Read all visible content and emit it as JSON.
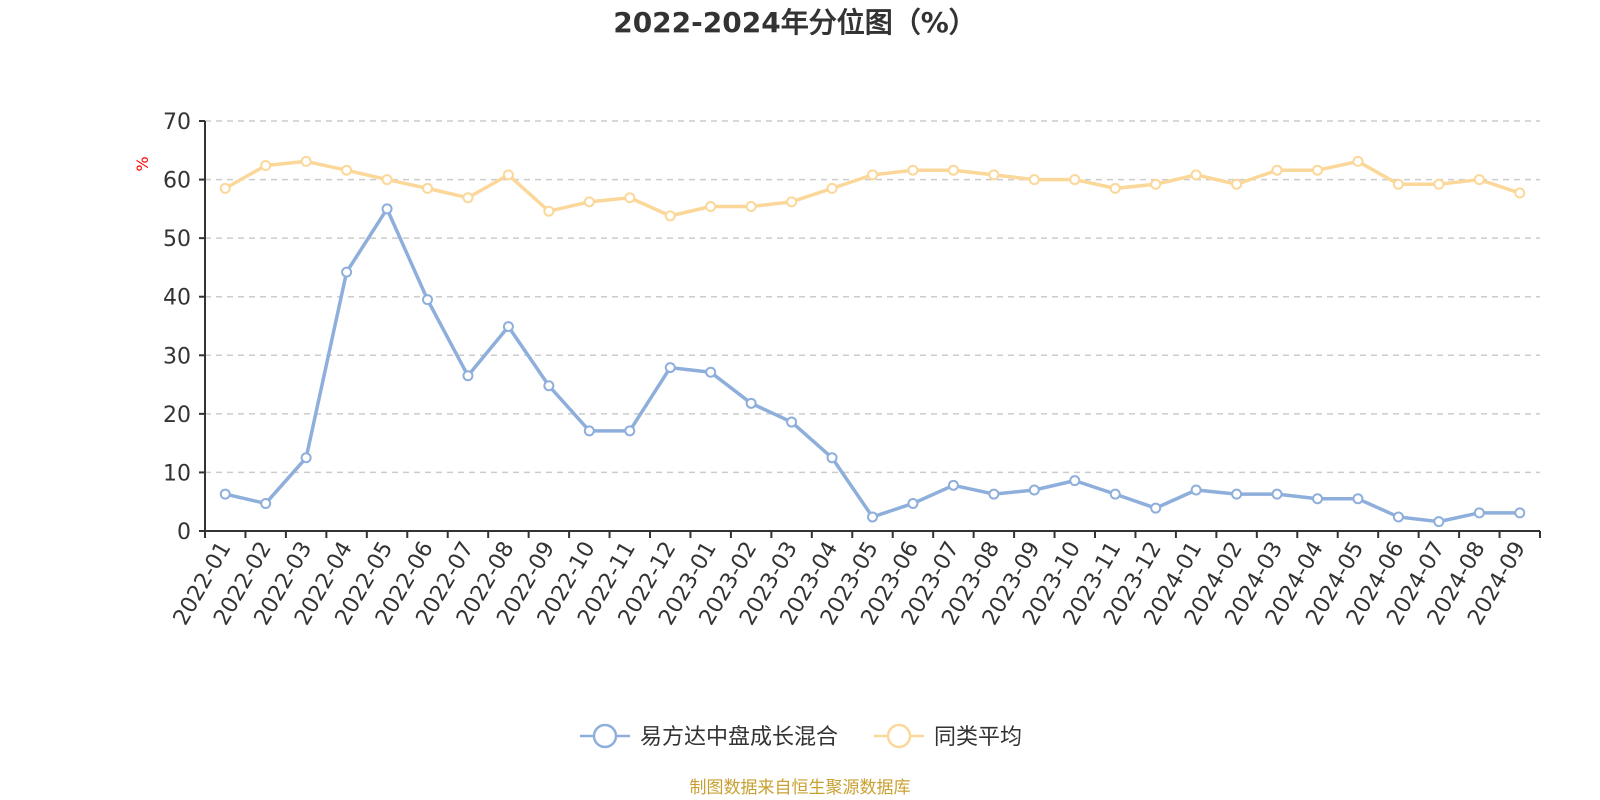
{
  "chart_data": {
    "type": "line",
    "title": "2022-2024年分位图（%）",
    "ylabel": "%",
    "xlabel": "",
    "ylim": [
      0,
      70
    ],
    "yticks": [
      0,
      10,
      20,
      30,
      40,
      50,
      60,
      70
    ],
    "grid": true,
    "legend_position": "bottom",
    "categories": [
      "2022-01",
      "2022-02",
      "2022-03",
      "2022-04",
      "2022-05",
      "2022-06",
      "2022-07",
      "2022-08",
      "2022-09",
      "2022-10",
      "2022-11",
      "2022-12",
      "2023-01",
      "2023-02",
      "2023-03",
      "2023-04",
      "2023-05",
      "2023-06",
      "2023-07",
      "2023-08",
      "2023-09",
      "2023-10",
      "2023-11",
      "2023-12",
      "2024-01",
      "2024-02",
      "2024-03",
      "2024-04",
      "2024-05",
      "2024-06",
      "2024-07",
      "2024-08",
      "2024-09"
    ],
    "series": [
      {
        "name": "易方达中盘成长混合",
        "color": "#8eaedb",
        "values": [
          6.3,
          4.7,
          12.5,
          44.2,
          55.0,
          39.5,
          26.5,
          34.9,
          24.8,
          17.1,
          17.1,
          27.9,
          27.1,
          21.8,
          18.6,
          12.5,
          2.4,
          4.7,
          7.8,
          6.3,
          7.0,
          8.6,
          6.3,
          3.9,
          7.0,
          6.3,
          6.3,
          5.5,
          5.5,
          2.4,
          1.6,
          3.1,
          3.1
        ]
      },
      {
        "name": "同类平均",
        "color": "#fbd89a",
        "values": [
          58.5,
          62.4,
          63.1,
          61.6,
          60.0,
          58.5,
          56.9,
          60.8,
          54.6,
          56.2,
          56.9,
          53.8,
          55.4,
          55.4,
          56.2,
          58.5,
          60.8,
          61.6,
          61.6,
          60.8,
          60.0,
          60.0,
          58.5,
          59.2,
          60.8,
          59.2,
          61.6,
          61.6,
          63.1,
          59.2,
          59.2,
          60.0,
          57.7
        ]
      }
    ],
    "footer": "制图数据来自恒生聚源数据库",
    "colors": {
      "axis": "#333333",
      "grid": "#cccccc",
      "ylabel": "#ff0000",
      "footer": "#c8a032",
      "text": "#333333"
    }
  }
}
